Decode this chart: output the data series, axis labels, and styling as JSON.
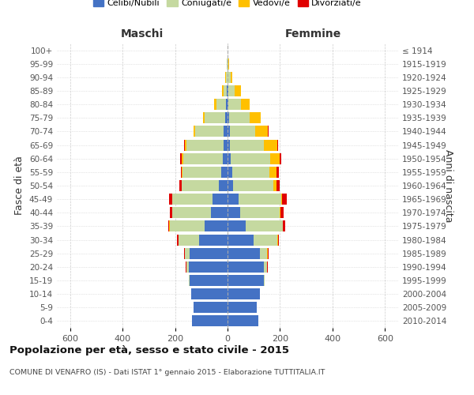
{
  "age_groups": [
    "0-4",
    "5-9",
    "10-14",
    "15-19",
    "20-24",
    "25-29",
    "30-34",
    "35-39",
    "40-44",
    "45-49",
    "50-54",
    "55-59",
    "60-64",
    "65-69",
    "70-74",
    "75-79",
    "80-84",
    "85-89",
    "90-94",
    "95-99",
    "100+"
  ],
  "birth_years": [
    "2010-2014",
    "2005-2009",
    "2000-2004",
    "1995-1999",
    "1990-1994",
    "1985-1989",
    "1980-1984",
    "1975-1979",
    "1970-1974",
    "1965-1969",
    "1960-1964",
    "1955-1959",
    "1950-1954",
    "1945-1949",
    "1940-1944",
    "1935-1939",
    "1930-1934",
    "1925-1929",
    "1920-1924",
    "1915-1919",
    "≤ 1914"
  ],
  "male": {
    "celibi": [
      135,
      128,
      138,
      143,
      148,
      143,
      108,
      88,
      62,
      58,
      32,
      23,
      18,
      14,
      14,
      8,
      5,
      2,
      1,
      0,
      0
    ],
    "coniugati": [
      0,
      0,
      0,
      3,
      8,
      18,
      78,
      132,
      148,
      152,
      142,
      148,
      152,
      143,
      108,
      78,
      38,
      14,
      5,
      2,
      0
    ],
    "vedovi": [
      0,
      0,
      0,
      0,
      0,
      2,
      2,
      2,
      2,
      2,
      2,
      3,
      5,
      5,
      8,
      8,
      8,
      5,
      2,
      0,
      0
    ],
    "divorziati": [
      0,
      0,
      0,
      0,
      2,
      2,
      5,
      5,
      8,
      10,
      8,
      5,
      5,
      5,
      0,
      0,
      0,
      0,
      0,
      0,
      0
    ]
  },
  "female": {
    "nubili": [
      118,
      112,
      122,
      138,
      138,
      123,
      98,
      68,
      48,
      42,
      22,
      18,
      13,
      10,
      8,
      5,
      3,
      2,
      1,
      0,
      0
    ],
    "coniugate": [
      0,
      0,
      0,
      3,
      12,
      28,
      92,
      142,
      152,
      162,
      152,
      142,
      148,
      128,
      98,
      78,
      48,
      24,
      10,
      3,
      0
    ],
    "vedove": [
      0,
      0,
      0,
      0,
      0,
      2,
      2,
      2,
      3,
      5,
      12,
      28,
      38,
      52,
      48,
      42,
      32,
      24,
      8,
      2,
      0
    ],
    "divorziate": [
      0,
      0,
      0,
      0,
      2,
      2,
      3,
      8,
      10,
      18,
      12,
      8,
      5,
      2,
      2,
      2,
      0,
      0,
      0,
      0,
      0
    ]
  },
  "colors": {
    "celibi": "#4472C4",
    "coniugati": "#c5d9a0",
    "vedovi": "#ffc000",
    "divorziati": "#e00000"
  },
  "xlim": 650,
  "title": "Popolazione per età, sesso e stato civile - 2015",
  "subtitle": "COMUNE DI VENAFRO (IS) - Dati ISTAT 1° gennaio 2015 - Elaborazione TUTTITALIA.IT",
  "ylabel_left": "Fasce di età",
  "ylabel_right": "Anni di nascita",
  "xlabel_left": "Maschi",
  "xlabel_right": "Femmine",
  "bg_color": "#ffffff",
  "grid_color": "#cccccc"
}
